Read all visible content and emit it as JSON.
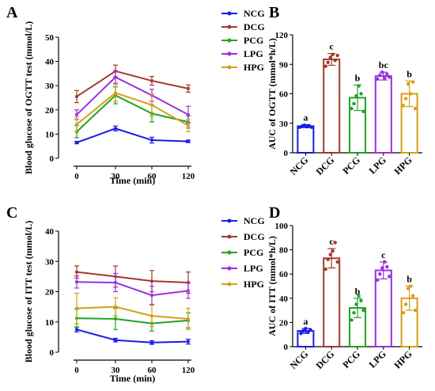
{
  "chart_data": [
    {
      "panel": "A",
      "type": "line",
      "xlabel": "Time (min)",
      "ylabel": "Blood glucose of OGTT test (mmol/L)",
      "x": [
        0,
        30,
        60,
        120
      ],
      "xticks": [
        "0",
        "30",
        "60",
        "120"
      ],
      "yticks": [
        "0",
        "10",
        "20",
        "30",
        "40",
        "50"
      ],
      "ylim": [
        0,
        50
      ],
      "legend_position": "top-right",
      "series": [
        {
          "name": "NCG",
          "color": "#1a1ae6",
          "values": [
            6.5,
            12.3,
            7.5,
            7.0
          ],
          "err": [
            0.5,
            1.0,
            1.2,
            0.5
          ]
        },
        {
          "name": "DCG",
          "color": "#a23a2a",
          "values": [
            25.5,
            36.0,
            32.0,
            28.8
          ],
          "err": [
            2.5,
            2.5,
            1.8,
            1.5
          ]
        },
        {
          "name": "PCG",
          "color": "#22a322",
          "values": [
            11.0,
            26.0,
            18.5,
            15.0
          ],
          "err": [
            2.5,
            3.5,
            3.5,
            2.5
          ]
        },
        {
          "name": "LPG",
          "color": "#9b30e0",
          "values": [
            18.0,
            33.5,
            26.0,
            18.0
          ],
          "err": [
            2.0,
            2.5,
            2.5,
            3.5
          ]
        },
        {
          "name": "HPG",
          "color": "#d4a017",
          "values": [
            14.0,
            27.0,
            22.0,
            13.5
          ],
          "err": [
            3.0,
            3.5,
            4.5,
            2.5
          ]
        }
      ]
    },
    {
      "panel": "B",
      "type": "bar",
      "ylabel": "AUC of OGTT  (mmol*h/L)",
      "categories": [
        "NCG",
        "DCG",
        "PCG",
        "LPG",
        "HPG"
      ],
      "values": [
        27,
        95,
        56,
        78,
        60
      ],
      "err": [
        1.5,
        6,
        13,
        4,
        13
      ],
      "points": [
        [
          26,
          27,
          28,
          26.5,
          27.5,
          26
        ],
        [
          88,
          92,
          97,
          100,
          94,
          99
        ],
        [
          45,
          50,
          58,
          68,
          60,
          42
        ],
        [
          75,
          79,
          82,
          76,
          80,
          77
        ],
        [
          48,
          55,
          70,
          60,
          72,
          45
        ]
      ],
      "labels": [
        "a",
        "c",
        "b",
        "bc",
        "b"
      ],
      "colors": [
        "#1a1ae6",
        "#a23a2a",
        "#22a322",
        "#9b30e0",
        "#d4a017"
      ],
      "yticks": [
        "0",
        "30",
        "60",
        "90",
        "120"
      ],
      "ylim": [
        0,
        120
      ]
    },
    {
      "panel": "C",
      "type": "line",
      "xlabel": "Time (min)",
      "ylabel": "Blood glucose of ITT test (mmol/L)",
      "x": [
        0,
        30,
        60,
        120
      ],
      "xticks": [
        "0",
        "30",
        "60",
        "120"
      ],
      "yticks": [
        "0",
        "10",
        "20",
        "30",
        "40"
      ],
      "ylim": [
        0,
        40
      ],
      "legend_position": "right",
      "series": [
        {
          "name": "NCG",
          "color": "#1a1ae6",
          "values": [
            7.5,
            4.0,
            3.2,
            3.5
          ],
          "err": [
            0.8,
            0.6,
            0.6,
            0.8
          ]
        },
        {
          "name": "DCG",
          "color": "#a23a2a",
          "values": [
            26.5,
            25.0,
            23.5,
            23.0
          ],
          "err": [
            2.0,
            3.5,
            3.5,
            3.5
          ]
        },
        {
          "name": "PCG",
          "color": "#22a322",
          "values": [
            11.2,
            11.0,
            9.5,
            10.5
          ],
          "err": [
            3.0,
            3.5,
            2.5,
            2.5
          ]
        },
        {
          "name": "LPG",
          "color": "#9b30e0",
          "values": [
            23.2,
            23.0,
            18.8,
            20.3
          ],
          "err": [
            2.0,
            3.0,
            3.0,
            2.5
          ]
        },
        {
          "name": "HPG",
          "color": "#d4a017",
          "values": [
            14.5,
            15.0,
            12.0,
            11.0
          ],
          "err": [
            5.0,
            3.0,
            3.5,
            3.5
          ]
        }
      ]
    },
    {
      "panel": "D",
      "type": "bar",
      "ylabel": "AUC of ITT  (mmol*h/L)",
      "categories": [
        "NCG",
        "DCG",
        "PCG",
        "LPG",
        "HPG"
      ],
      "values": [
        13,
        73,
        32,
        63,
        40
      ],
      "err": [
        2,
        8,
        8,
        7,
        10
      ],
      "points": [
        [
          11,
          13,
          15,
          12,
          14
        ],
        [
          64,
          72,
          76,
          79,
          86,
          70
        ],
        [
          22,
          28,
          35,
          42,
          38,
          30
        ],
        [
          55,
          60,
          65,
          70,
          66,
          58
        ],
        [
          28,
          35,
          48,
          50,
          42,
          30
        ]
      ],
      "labels": [
        "a",
        "c",
        "b",
        "c",
        "b"
      ],
      "colors": [
        "#1a1ae6",
        "#a23a2a",
        "#22a322",
        "#9b30e0",
        "#d4a017"
      ],
      "yticks": [
        "0",
        "20",
        "40",
        "60",
        "80",
        "100"
      ],
      "ylim": [
        0,
        100
      ]
    }
  ]
}
